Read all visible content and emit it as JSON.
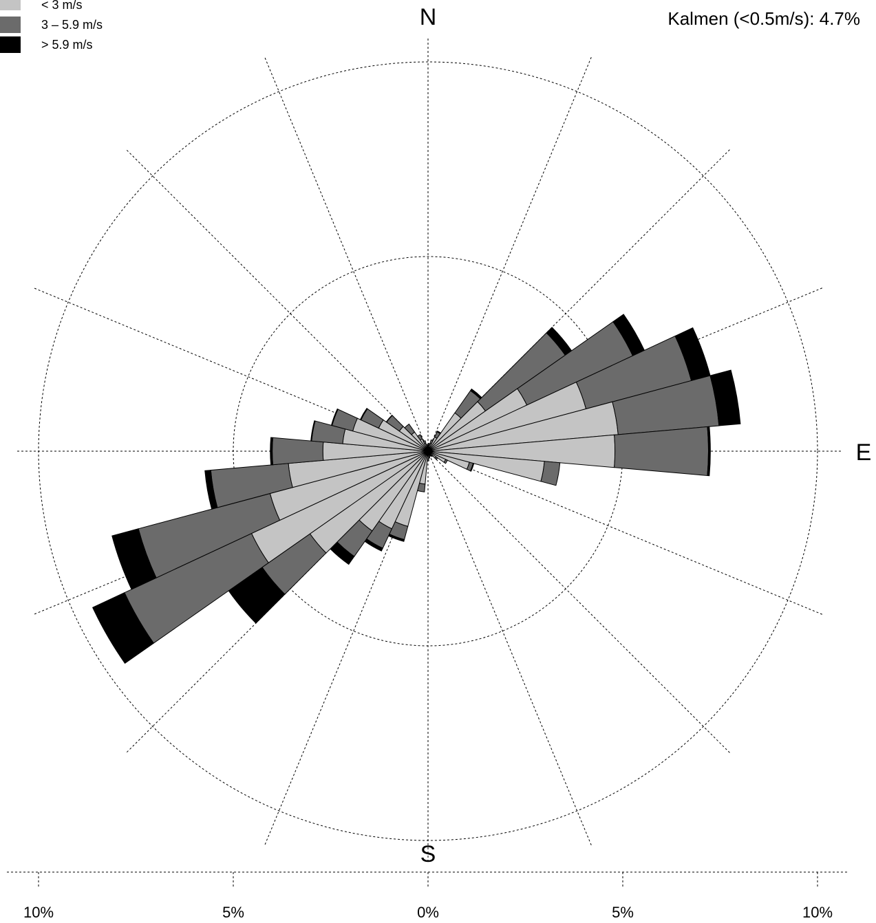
{
  "chart_data": {
    "type": "polar-stacked-bar",
    "title": "",
    "directions": {
      "north": "N",
      "east": "E",
      "south": "S"
    },
    "calm_text": "Kalmen (<0.5m/s): 4.7%",
    "legend": [
      {
        "label": "< 3 m/s",
        "color": "#c4c4c4"
      },
      {
        "label": "3 – 5.9 m/s",
        "color": "#6b6b6b"
      },
      {
        "label": "> 5.9 m/s",
        "color": "#000000"
      }
    ],
    "series_names": [
      "< 3 m/s",
      "3 – 5.9 m/s",
      "> 5.9 m/s"
    ],
    "rings_percent": [
      5,
      10
    ],
    "axis_ticks": [
      {
        "value": -10,
        "label": "10%"
      },
      {
        "value": -5,
        "label": "5%"
      },
      {
        "value": 0,
        "label": "0%"
      },
      {
        "value": 5,
        "label": "5%"
      },
      {
        "value": 10,
        "label": "10%"
      }
    ],
    "sector_width_deg": 10,
    "sectors": [
      {
        "dir": 0,
        "values": [
          0.1,
          0.05,
          0.0
        ]
      },
      {
        "dir": 10,
        "values": [
          0.15,
          0.05,
          0.0
        ]
      },
      {
        "dir": 20,
        "values": [
          0.2,
          0.1,
          0.0
        ]
      },
      {
        "dir": 30,
        "values": [
          0.4,
          0.15,
          0.02
        ]
      },
      {
        "dir": 40,
        "values": [
          1.2,
          0.7,
          0.05
        ]
      },
      {
        "dir": 50,
        "values": [
          1.8,
          2.5,
          0.2
        ]
      },
      {
        "dir": 60,
        "values": [
          2.8,
          3.0,
          0.33
        ]
      },
      {
        "dir": 70,
        "values": [
          4.2,
          2.8,
          0.5
        ]
      },
      {
        "dir": 80,
        "values": [
          4.9,
          2.6,
          0.55
        ]
      },
      {
        "dir": 90,
        "values": [
          4.8,
          2.4,
          0.05
        ]
      },
      {
        "dir": 100,
        "values": [
          3.0,
          0.4,
          0.0
        ]
      },
      {
        "dir": 110,
        "values": [
          1.1,
          0.1,
          0.02
        ]
      },
      {
        "dir": 120,
        "values": [
          0.5,
          0.05,
          0.0
        ]
      },
      {
        "dir": 130,
        "values": [
          0.25,
          0.05,
          0.0
        ]
      },
      {
        "dir": 140,
        "values": [
          0.15,
          0.02,
          0.0
        ]
      },
      {
        "dir": 150,
        "values": [
          0.12,
          0.02,
          0.0
        ]
      },
      {
        "dir": 160,
        "values": [
          0.12,
          0.02,
          0.0
        ]
      },
      {
        "dir": 170,
        "values": [
          0.15,
          0.03,
          0.0
        ]
      },
      {
        "dir": 180,
        "values": [
          0.2,
          0.05,
          0.0
        ]
      },
      {
        "dir": 190,
        "values": [
          0.85,
          0.2,
          0.0
        ]
      },
      {
        "dir": 200,
        "values": [
          2.0,
          0.35,
          0.05
        ]
      },
      {
        "dir": 210,
        "values": [
          2.2,
          0.55,
          0.08
        ]
      },
      {
        "dir": 220,
        "values": [
          2.5,
          0.8,
          0.25
        ]
      },
      {
        "dir": 230,
        "values": [
          3.7,
          1.5,
          1.05
        ]
      },
      {
        "dir": 240,
        "values": [
          5.0,
          3.6,
          0.9
        ]
      },
      {
        "dir": 250,
        "values": [
          4.2,
          3.5,
          0.7
        ]
      },
      {
        "dir": 260,
        "values": [
          3.6,
          2.0,
          0.15
        ]
      },
      {
        "dir": 270,
        "values": [
          2.7,
          1.3,
          0.05
        ]
      },
      {
        "dir": 280,
        "values": [
          2.2,
          0.8,
          0.02
        ]
      },
      {
        "dir": 290,
        "values": [
          2.0,
          0.55,
          0.02
        ]
      },
      {
        "dir": 300,
        "values": [
          1.4,
          0.5,
          0.02
        ]
      },
      {
        "dir": 310,
        "values": [
          0.9,
          0.4,
          0.01
        ]
      },
      {
        "dir": 320,
        "values": [
          0.6,
          0.25,
          0.0
        ]
      },
      {
        "dir": 330,
        "values": [
          0.35,
          0.12,
          0.0
        ]
      },
      {
        "dir": 340,
        "values": [
          0.2,
          0.08,
          0.0
        ]
      },
      {
        "dir": 350,
        "values": [
          0.12,
          0.05,
          0.0
        ]
      }
    ]
  }
}
